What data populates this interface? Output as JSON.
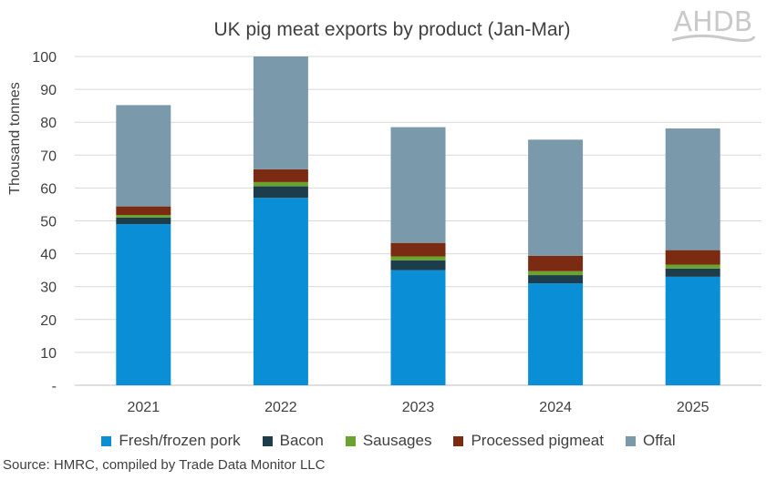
{
  "chart_data": {
    "type": "bar",
    "stacked": true,
    "title": "UK pig meat exports by product (Jan-Mar)",
    "xlabel": "",
    "ylabel": "Thousand tonnes",
    "ylim": [
      0,
      100
    ],
    "yticks": [
      "-",
      "10",
      "20",
      "30",
      "40",
      "50",
      "60",
      "70",
      "80",
      "90",
      "100"
    ],
    "grid": true,
    "legend_position": "bottom",
    "categories": [
      "2021",
      "2022",
      "2023",
      "2024",
      "2025"
    ],
    "series": [
      {
        "name": "Fresh/frozen pork",
        "color": "#0a8fd6",
        "values": [
          49,
          57,
          35,
          31,
          33
        ]
      },
      {
        "name": "Bacon",
        "color": "#1d3c4c",
        "values": [
          2,
          3.5,
          3,
          2.5,
          2.5
        ]
      },
      {
        "name": "Sausages",
        "color": "#6aa32e",
        "values": [
          0.8,
          1.3,
          1.2,
          1.2,
          1.2
        ]
      },
      {
        "name": "Processed pigmeat",
        "color": "#7a2b12",
        "values": [
          2.6,
          3.9,
          4.1,
          4.7,
          4.4
        ]
      },
      {
        "name": "Offal",
        "color": "#7a99aa",
        "values": [
          30.8,
          34.3,
          35.2,
          35.3,
          37
        ]
      }
    ]
  },
  "logo": {
    "text": "AHDB"
  },
  "source": "Source: HMRC, compiled by Trade Data Monitor LLC"
}
